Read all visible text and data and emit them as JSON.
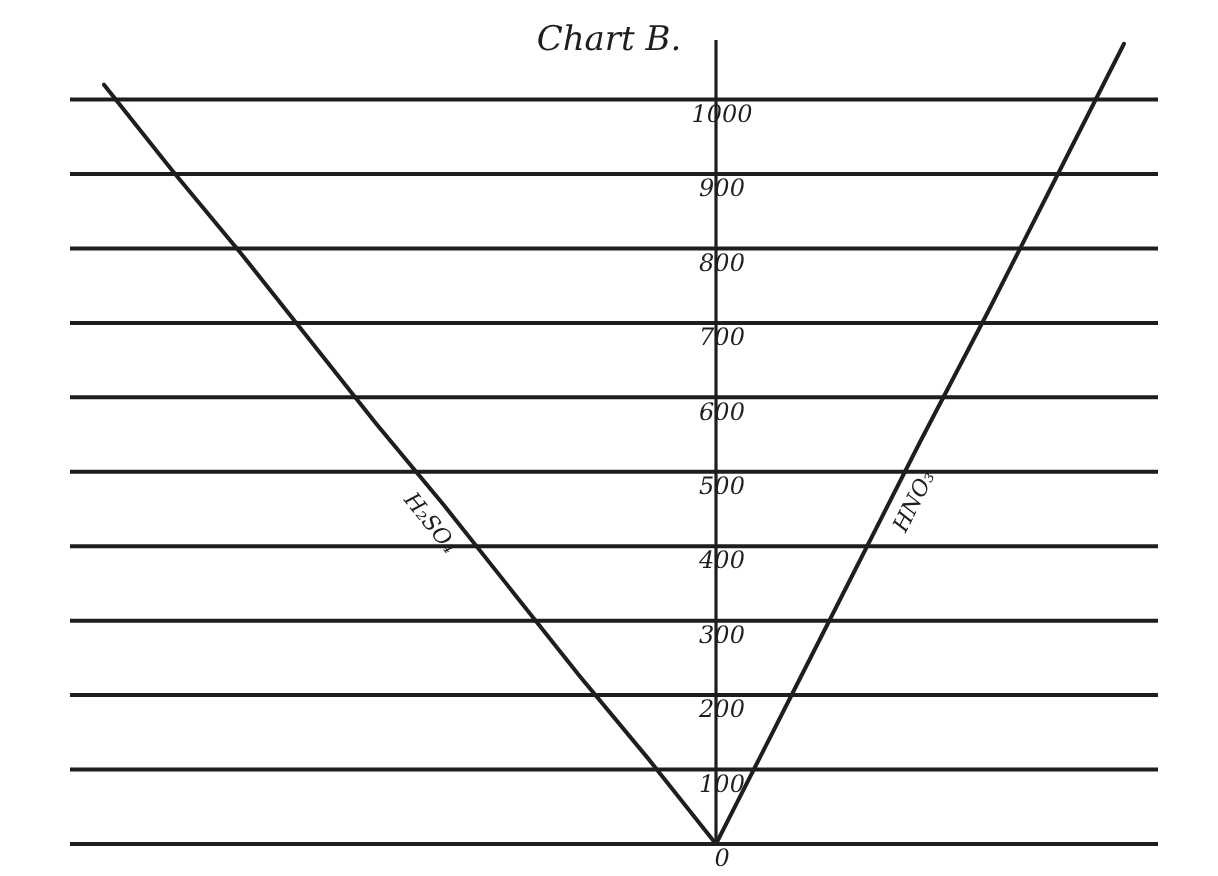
{
  "chart_data": {
    "type": "line",
    "title": "Chart B.",
    "categories": [
      null,
      null,
      null,
      null,
      null,
      null,
      null,
      null,
      null,
      null,
      null,
      null,
      null,
      null,
      null,
      null
    ],
    "series": [
      {
        "name": "H₂SO₄",
        "color": "#1e1e1e",
        "values": [
          1020,
          905,
          795,
          680,
          565,
          455,
          340,
          225,
          115,
          0,
          null,
          null,
          null,
          null,
          null,
          null
        ]
      },
      {
        "name": "HNO₃",
        "color": "#1e1e1e",
        "values": [
          null,
          null,
          null,
          null,
          null,
          null,
          null,
          null,
          null,
          0,
          180,
          360,
          540,
          715,
          895,
          1075
        ]
      }
    ],
    "ylim": [
      0,
      1080
    ],
    "yticks": [
      0,
      100,
      200,
      300,
      400,
      500,
      600,
      700,
      800,
      900,
      1000
    ],
    "grid": "y",
    "tick_labels": "y",
    "marker": "none",
    "line_style": "solid",
    "legend": false
  }
}
